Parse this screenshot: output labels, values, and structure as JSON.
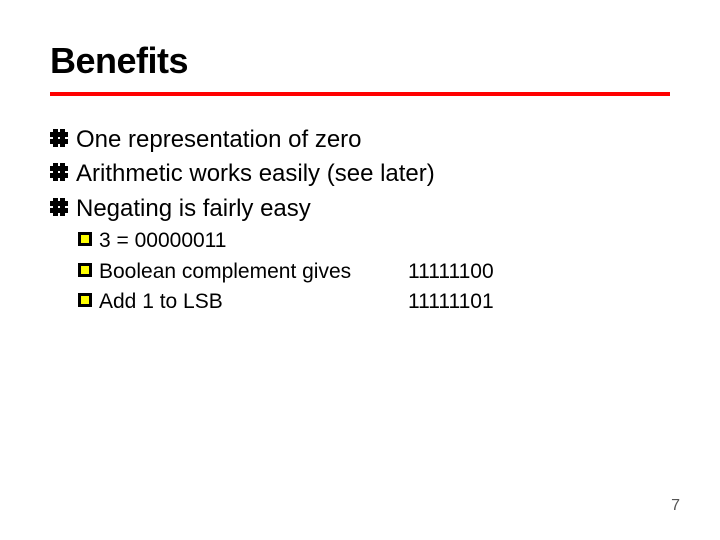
{
  "title": "Benefits",
  "colors": {
    "rule": "#ff0000",
    "text": "#000000",
    "background": "#ffffff",
    "sub_bullet_fill": "#ffff00",
    "pagenum": "#555555"
  },
  "typography": {
    "title_font": "Arial",
    "title_weight": 900,
    "title_size_pt": 36,
    "body_font": "Verdana",
    "lvl1_size_pt": 24,
    "lvl2_size_pt": 21
  },
  "bullets": {
    "lvl1": [
      "One representation of zero",
      "Arithmetic works easily (see later)",
      "Negating is fairly easy"
    ],
    "lvl2": [
      {
        "label": "3 = 00000011",
        "value": ""
      },
      {
        "label": "Boolean complement gives",
        "value": "11111100"
      },
      {
        "label": "Add 1 to LSB",
        "value": "11111101"
      }
    ]
  },
  "page_number": "7"
}
